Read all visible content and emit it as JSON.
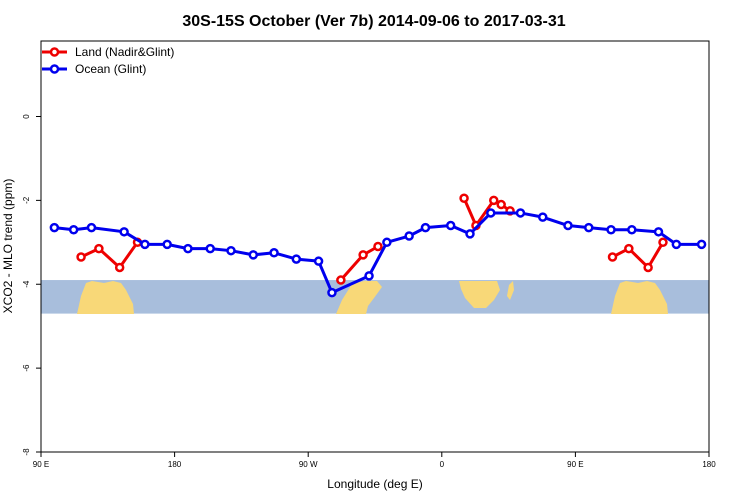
{
  "chart_data": {
    "type": "line",
    "title": "30S-15S October (Ver 7b)   2014-09-06 to 2017-03-31",
    "xlabel": "Longitude (deg E)",
    "ylabel": "XCO2 - MLO trend (ppm)",
    "x_tick_labels": [
      "90 E",
      "180",
      "90 W",
      "0",
      "90 E",
      "180"
    ],
    "x_tick_values": [
      90,
      180,
      270,
      360,
      450,
      540
    ],
    "y_tick_labels": [
      "-8",
      "-6",
      "-4",
      "-2",
      "0"
    ],
    "y_tick_values": [
      -8,
      -6,
      -4,
      -2,
      0
    ],
    "xlim": [
      90,
      540
    ],
    "ylim": [
      -8.0,
      1.8
    ],
    "legend_position": "top-left",
    "map_band": {
      "ylim": [
        -4.7,
        -3.9
      ],
      "ocean_color": "#a8bedc",
      "land_color": "#f8d878"
    },
    "series": [
      {
        "name": "Land (Nadir&Glint)",
        "color": "#ee0000",
        "segments": [
          [
            [
              117,
              -3.35
            ],
            [
              129,
              -3.15
            ],
            [
              143,
              -3.6
            ],
            [
              155,
              -3.0
            ]
          ],
          [
            [
              292,
              -3.9
            ],
            [
              307,
              -3.3
            ],
            [
              317,
              -3.1
            ]
          ],
          [
            [
              375,
              -1.95
            ],
            [
              383,
              -2.6
            ],
            [
              395,
              -2.0
            ],
            [
              400,
              -2.1
            ],
            [
              406,
              -2.25
            ]
          ],
          [
            [
              475,
              -3.35
            ],
            [
              486,
              -3.15
            ],
            [
              499,
              -3.6
            ],
            [
              509,
              -3.0
            ]
          ]
        ]
      },
      {
        "name": "Ocean (Glint)",
        "color": "#0000ee",
        "segments": [
          [
            [
              99,
              -2.65
            ],
            [
              112,
              -2.7
            ],
            [
              124,
              -2.65
            ],
            [
              146,
              -2.75
            ],
            [
              160,
              -3.05
            ],
            [
              175,
              -3.05
            ],
            [
              189,
              -3.15
            ],
            [
              204,
              -3.15
            ],
            [
              218,
              -3.2
            ],
            [
              233,
              -3.3
            ],
            [
              247,
              -3.25
            ],
            [
              262,
              -3.4
            ],
            [
              277,
              -3.45
            ],
            [
              286,
              -4.2
            ],
            [
              311,
              -3.8
            ],
            [
              323,
              -3.0
            ],
            [
              338,
              -2.85
            ],
            [
              349,
              -2.65
            ],
            [
              366,
              -2.6
            ],
            [
              379,
              -2.8
            ],
            [
              393,
              -2.3
            ],
            [
              413,
              -2.3
            ],
            [
              428,
              -2.4
            ],
            [
              445,
              -2.6
            ],
            [
              459,
              -2.65
            ],
            [
              474,
              -2.7
            ],
            [
              488,
              -2.7
            ],
            [
              506,
              -2.75
            ],
            [
              518,
              -3.05
            ],
            [
              535,
              -3.05
            ]
          ]
        ]
      }
    ]
  }
}
